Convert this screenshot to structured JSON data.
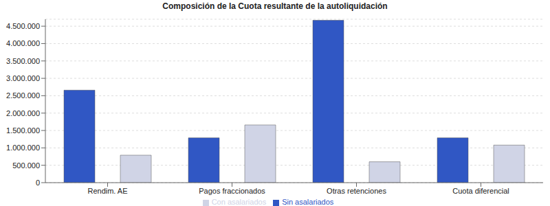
{
  "chart_data": {
    "type": "bar",
    "title": "Composición de la Cuota resultante de la autoliquidación",
    "categories": [
      "Rendim. AE",
      "Pagos fraccionados",
      "Otras retenciones",
      "Cuota diferencial"
    ],
    "series": [
      {
        "name": "Sin asalariados",
        "color": "#3057c4",
        "values": [
          2660000,
          1290000,
          4670000,
          1290000
        ]
      },
      {
        "name": "Con asalariados",
        "color": "#d0d4e6",
        "values": [
          790000,
          1660000,
          600000,
          1080000
        ]
      }
    ],
    "ylim": [
      0,
      4700000
    ],
    "yticks": [
      0,
      {
        "value": 500000,
        "label": "500.000"
      },
      {
        "value": 1000000,
        "label": "1.000.000"
      },
      {
        "value": 1500000,
        "label": "1.500.000"
      },
      {
        "value": 2000000,
        "label": "2.000.000"
      },
      {
        "value": 2500000,
        "label": "2.500.000"
      },
      {
        "value": 3000000,
        "label": "3.000.000"
      },
      {
        "value": 3500000,
        "label": "3.500.000"
      },
      {
        "value": 4000000,
        "label": "4.000.000"
      },
      {
        "value": 4500000,
        "label": "4.500.000"
      }
    ],
    "grid": true,
    "legend": "bottom"
  }
}
